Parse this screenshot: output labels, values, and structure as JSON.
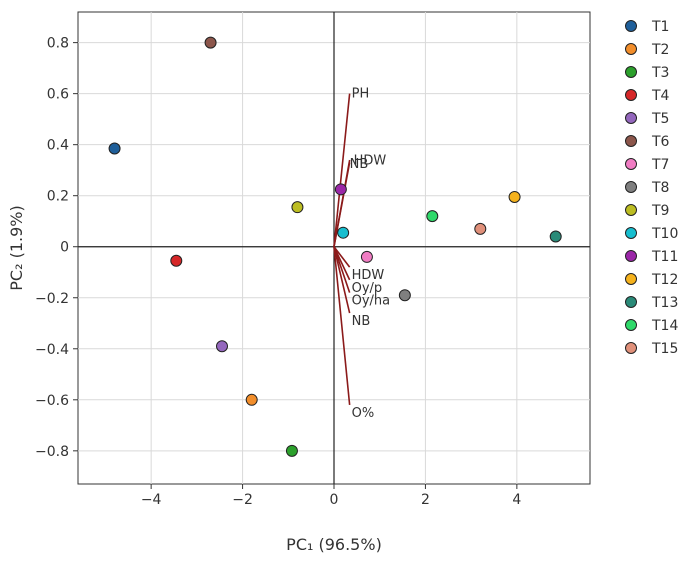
{
  "chart_data": {
    "type": "scatter",
    "xlabel": "PC₁ (96.5%)",
    "ylabel": "PC₂ (1.9%)",
    "xlim": [
      -5.6,
      5.6
    ],
    "ylim": [
      -0.93,
      0.92
    ],
    "xticks": [
      -4,
      -2,
      0,
      2,
      4
    ],
    "yticks": [
      -0.8,
      -0.6,
      -0.4,
      -0.2,
      0,
      0.2,
      0.4,
      0.6,
      0.8
    ],
    "ytick_labels": [
      "−0.8",
      "−0.6",
      "−0.4",
      "−0.2",
      "0",
      "0.2",
      "0.4",
      "0.6",
      "0.8"
    ],
    "xtick_labels": [
      "−4",
      "−2",
      "0",
      "2",
      "4"
    ],
    "grid": true,
    "legend_position": "right",
    "series": [
      {
        "name": "T1",
        "color": "#1f5f9a",
        "x": -4.8,
        "y": 0.385
      },
      {
        "name": "T2",
        "color": "#f28e2b",
        "x": -1.8,
        "y": -0.6
      },
      {
        "name": "T3",
        "color": "#2ca02c",
        "x": -0.92,
        "y": -0.8
      },
      {
        "name": "T4",
        "color": "#d62728",
        "x": -3.45,
        "y": -0.055
      },
      {
        "name": "T5",
        "color": "#9467bd",
        "x": -2.45,
        "y": -0.39
      },
      {
        "name": "T6",
        "color": "#8c564b",
        "x": -2.7,
        "y": 0.8
      },
      {
        "name": "T7",
        "color": "#f07cc3",
        "x": 0.72,
        "y": -0.04
      },
      {
        "name": "T8",
        "color": "#7f7f7f",
        "x": 1.55,
        "y": -0.19
      },
      {
        "name": "T9",
        "color": "#bcbd22",
        "x": -0.8,
        "y": 0.155
      },
      {
        "name": "T10",
        "color": "#17becf",
        "x": 0.2,
        "y": 0.055
      },
      {
        "name": "T11",
        "color": "#9b27a8",
        "x": 0.15,
        "y": 0.225
      },
      {
        "name": "T12",
        "color": "#f5b21d",
        "x": 3.95,
        "y": 0.195
      },
      {
        "name": "T13",
        "color": "#2a8a78",
        "x": 4.85,
        "y": 0.04
      },
      {
        "name": "T14",
        "color": "#2fd96a",
        "x": 2.15,
        "y": 0.12
      },
      {
        "name": "T15",
        "color": "#e0907a",
        "x": 3.2,
        "y": 0.07
      }
    ],
    "loadings": [
      {
        "name": "PH",
        "x": 0.38,
        "y": 0.6
      },
      {
        "name": "NB",
        "x": 0.38,
        "y": 0.34
      },
      {
        "name": "HDW",
        "x": 0.38,
        "y": 0.33
      },
      {
        "name": "HDW",
        "x": 0.38,
        "y": -0.08
      },
      {
        "name": "Oy/p",
        "x": 0.38,
        "y": -0.13
      },
      {
        "name": "Oy/ha",
        "x": 0.38,
        "y": -0.18
      },
      {
        "name": "NB",
        "x": 0.38,
        "y": -0.26
      },
      {
        "name": "O%",
        "x": 0.38,
        "y": -0.62
      }
    ]
  }
}
